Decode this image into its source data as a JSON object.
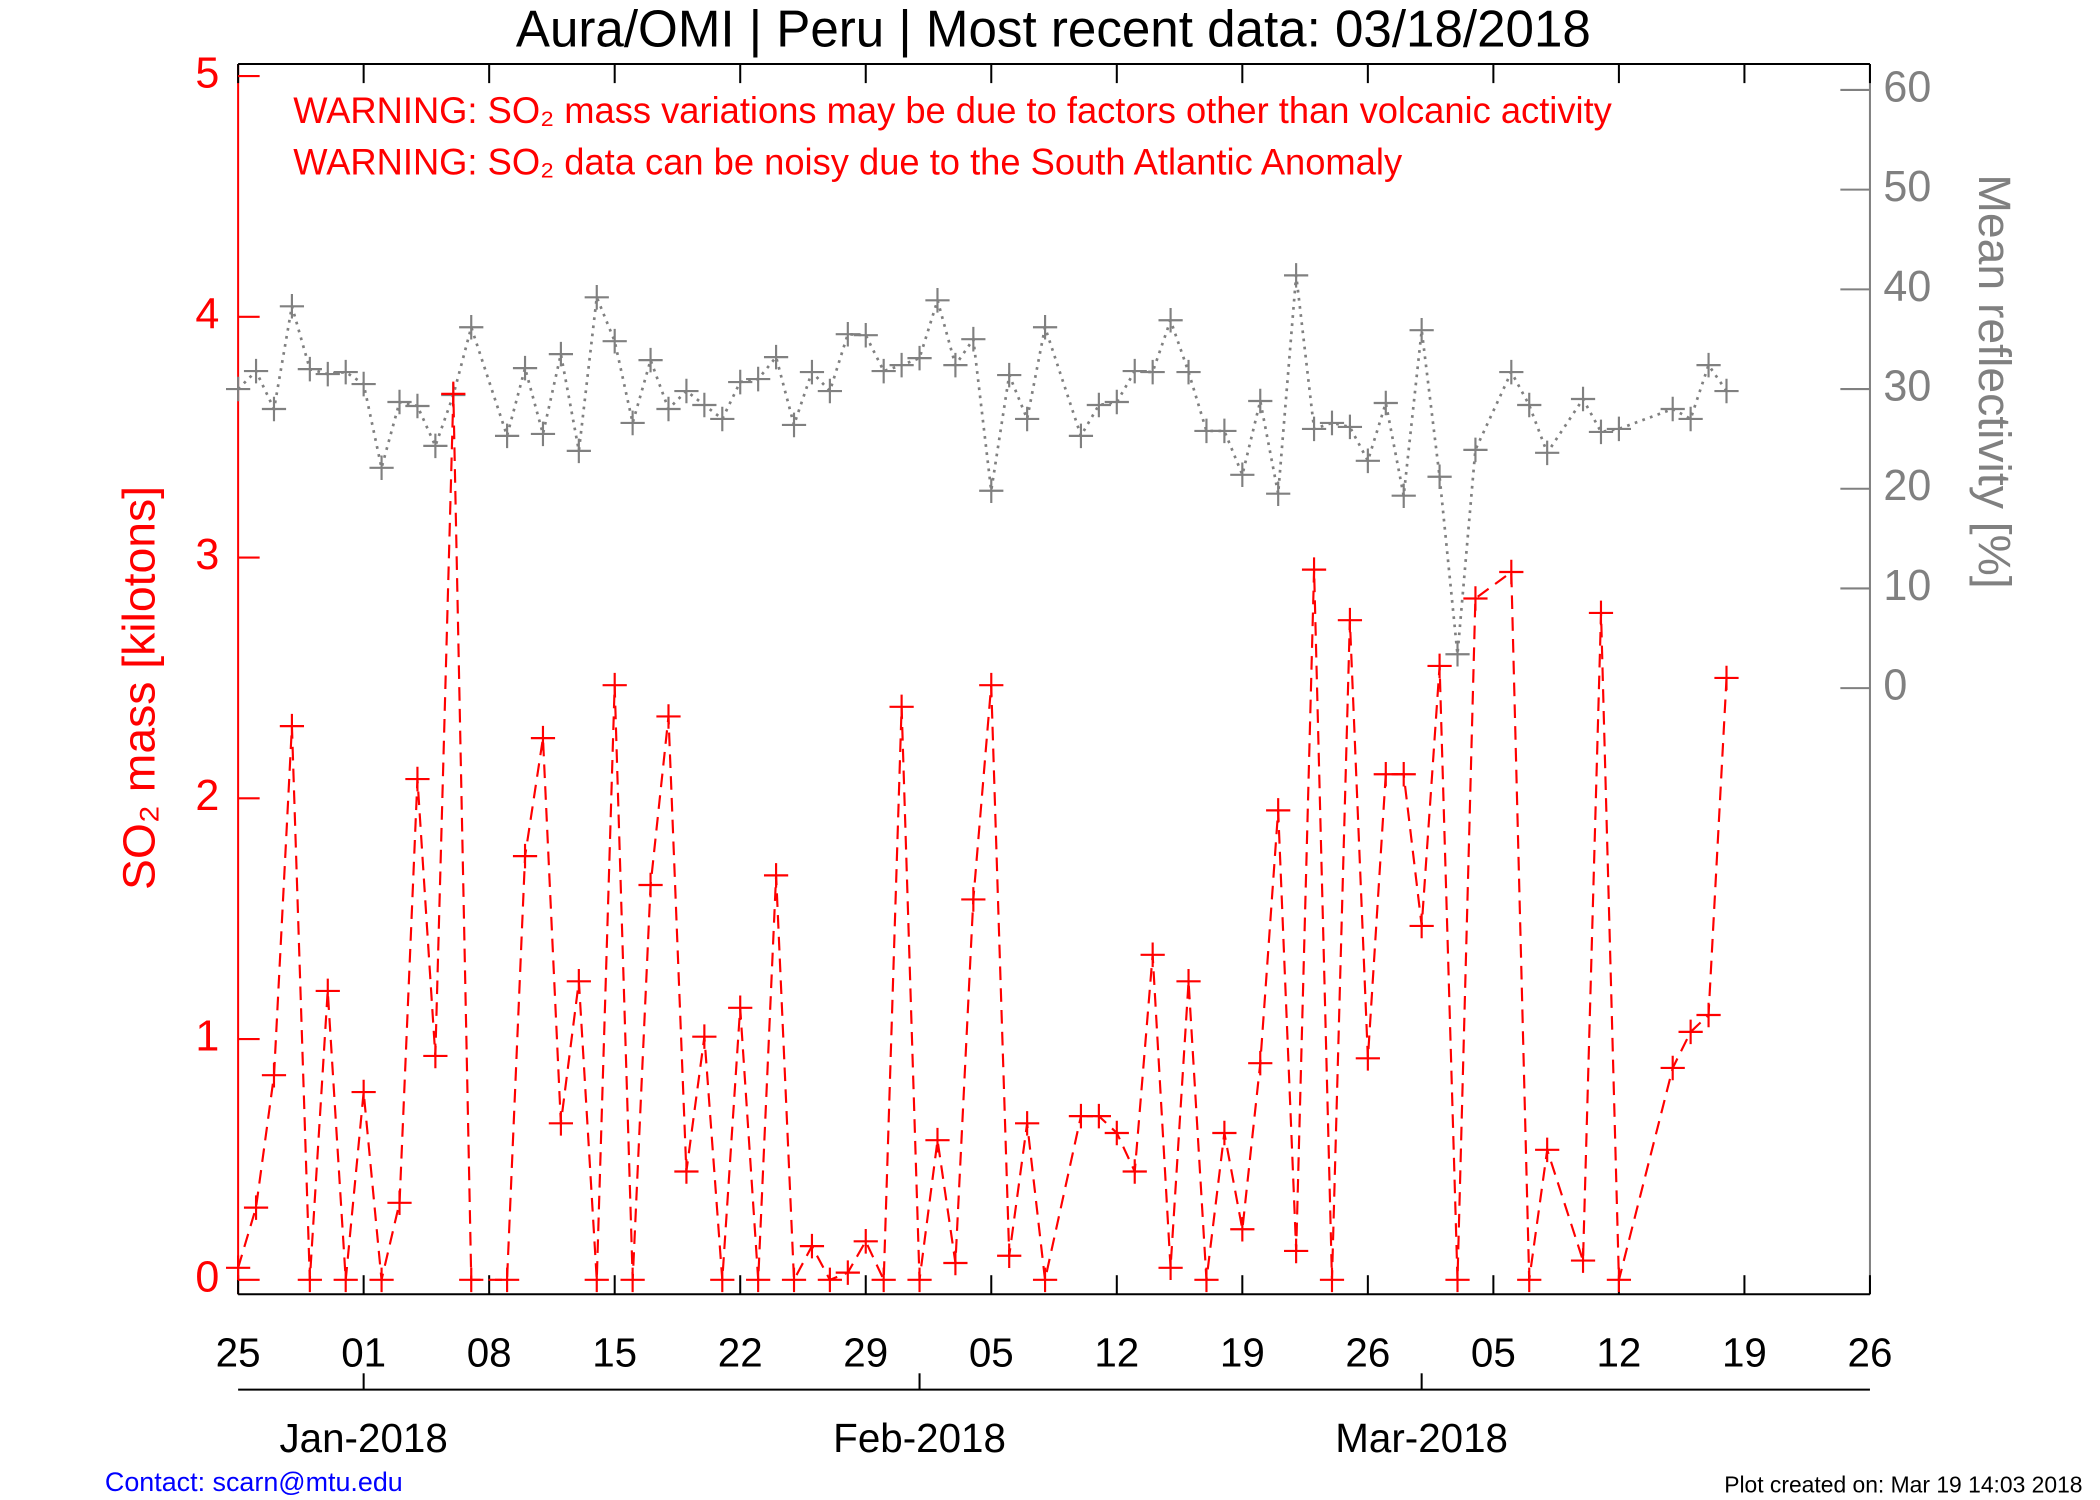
{
  "chart_data": {
    "type": "line",
    "title": "Aura/OMI | Peru | Most recent data: 03/18/2018",
    "annotations": [
      "WARNING: SO₂ mass variations may be due to factors other than volcanic activity",
      "WARNING: SO₂ data can be noisy due to the South Atlantic Anomaly"
    ],
    "ylabel": "SO₂ mass [kilotons]",
    "y2label": "Mean reflectivity [%]",
    "footer_left": "Contact: scarn@mtu.edu",
    "footer_right": "Plot created on: Mar 19 14:03 2018",
    "x": [
      "2017-12-25",
      "2017-12-26",
      "2017-12-27",
      "2017-12-28",
      "2017-12-29",
      "2017-12-30",
      "2017-12-31",
      "2018-01-01",
      "2018-01-02",
      "2018-01-03",
      "2018-01-04",
      "2018-01-05",
      "2018-01-06",
      "2018-01-07",
      "2018-01-09",
      "2018-01-10",
      "2018-01-11",
      "2018-01-12",
      "2018-01-13",
      "2018-01-14",
      "2018-01-15",
      "2018-01-16",
      "2018-01-17",
      "2018-01-18",
      "2018-01-19",
      "2018-01-20",
      "2018-01-21",
      "2018-01-22",
      "2018-01-23",
      "2018-01-24",
      "2018-01-25",
      "2018-01-26",
      "2018-01-27",
      "2018-01-28",
      "2018-01-29",
      "2018-01-30",
      "2018-01-31",
      "2018-02-01",
      "2018-02-02",
      "2018-02-03",
      "2018-02-04",
      "2018-02-05",
      "2018-02-06",
      "2018-02-07",
      "2018-02-08",
      "2018-02-10",
      "2018-02-11",
      "2018-02-12",
      "2018-02-13",
      "2018-02-14",
      "2018-02-15",
      "2018-02-16",
      "2018-02-17",
      "2018-02-18",
      "2018-02-19",
      "2018-02-20",
      "2018-02-21",
      "2018-02-22",
      "2018-02-23",
      "2018-02-24",
      "2018-02-25",
      "2018-02-26",
      "2018-02-27",
      "2018-02-28",
      "2018-03-01",
      "2018-03-02",
      "2018-03-03",
      "2018-03-04",
      "2018-03-06",
      "2018-03-07",
      "2018-03-08",
      "2018-03-10",
      "2018-03-11",
      "2018-03-12",
      "2018-03-15",
      "2018-03-16",
      "2018-03-17",
      "2018-03-18"
    ],
    "series": [
      {
        "color": "#ff0000",
        "linestyle": "dashed",
        "marker": "+",
        "values": [
          0.05,
          0.3,
          0.85,
          2.3,
          0,
          1.2,
          0,
          0.78,
          0,
          0.32,
          2.08,
          0.93,
          3.68,
          0,
          0,
          1.76,
          2.25,
          0.65,
          1.24,
          0,
          2.47,
          0,
          1.64,
          2.34,
          0.45,
          1.01,
          0,
          1.13,
          0,
          1.68,
          0,
          0.14,
          0,
          0.03,
          0.16,
          0,
          2.38,
          0,
          0.58,
          0.07,
          1.58,
          2.47,
          0.1,
          0.65,
          0,
          0.68,
          0.68,
          0.61,
          0.45,
          1.35,
          0.05,
          1.24,
          0,
          0.61,
          0.21,
          0.9,
          1.95,
          0.12,
          2.95,
          0,
          2.74,
          0.92,
          2.1,
          2.1,
          1.47,
          2.55,
          0,
          2.83,
          2.94,
          0,
          0.54,
          0.08,
          2.77,
          0,
          0.88,
          1.03,
          1.1,
          2.5
        ]
      },
      {
        "color": "#808080",
        "linestyle": "dotted",
        "marker": "+",
        "axis": "y2",
        "values": [
          30,
          31.8,
          28,
          38.3,
          32,
          31.5,
          31.7,
          30.5,
          22.1,
          28.7,
          28.3,
          24.3,
          29.4,
          36.2,
          25.3,
          32.1,
          25.5,
          33.5,
          23.8,
          39.2,
          34.8,
          26.6,
          32.9,
          28,
          29.8,
          28.4,
          27,
          30.7,
          31,
          33.2,
          26.4,
          31.7,
          29.8,
          35.5,
          35.4,
          31.8,
          32.4,
          33.1,
          38.9,
          32.4,
          35,
          19.8,
          31.4,
          27,
          36.2,
          25.3,
          28.4,
          28.7,
          31.8,
          31.7,
          36.9,
          31.7,
          25.8,
          25.8,
          21.4,
          28.8,
          19.5,
          41.4,
          26,
          26.6,
          26.2,
          22.8,
          28.6,
          19.3,
          35.9,
          21.2,
          3.4,
          23.9,
          31.7,
          28.4,
          23.6,
          29,
          25.7,
          26,
          28,
          27,
          32.4,
          29.8
        ]
      }
    ],
    "xlim": [
      "2017-12-25",
      "2018-03-26"
    ],
    "xticks": [
      {
        "value": "2017-12-25",
        "label": "25"
      },
      {
        "value": "2018-01-01",
        "label": "01"
      },
      {
        "value": "2018-01-08",
        "label": "08"
      },
      {
        "value": "2018-01-15",
        "label": "15"
      },
      {
        "value": "2018-01-22",
        "label": "22"
      },
      {
        "value": "2018-01-29",
        "label": "29"
      },
      {
        "value": "2018-02-05",
        "label": "05"
      },
      {
        "value": "2018-02-12",
        "label": "12"
      },
      {
        "value": "2018-02-19",
        "label": "19"
      },
      {
        "value": "2018-02-26",
        "label": "26"
      },
      {
        "value": "2018-03-05",
        "label": "05"
      },
      {
        "value": "2018-03-12",
        "label": "12"
      },
      {
        "value": "2018-03-19",
        "label": "19"
      },
      {
        "value": "2018-03-26",
        "label": "26"
      }
    ],
    "month_ticks": [
      {
        "value": "2018-01-01",
        "label": "Jan-2018"
      },
      {
        "value": "2018-02-01",
        "label": "Feb-2018"
      },
      {
        "value": "2018-03-01",
        "label": "Mar-2018"
      }
    ],
    "ylim": [
      -0.06,
      5.05
    ],
    "yticks": [
      0,
      1,
      2,
      3,
      4,
      5
    ],
    "y2lim": [
      -60.8,
      62.6
    ],
    "y2ticks": [
      0,
      10,
      20,
      30,
      40,
      50,
      60
    ],
    "ycolor": "#ff0000",
    "y2color": "#808080"
  }
}
